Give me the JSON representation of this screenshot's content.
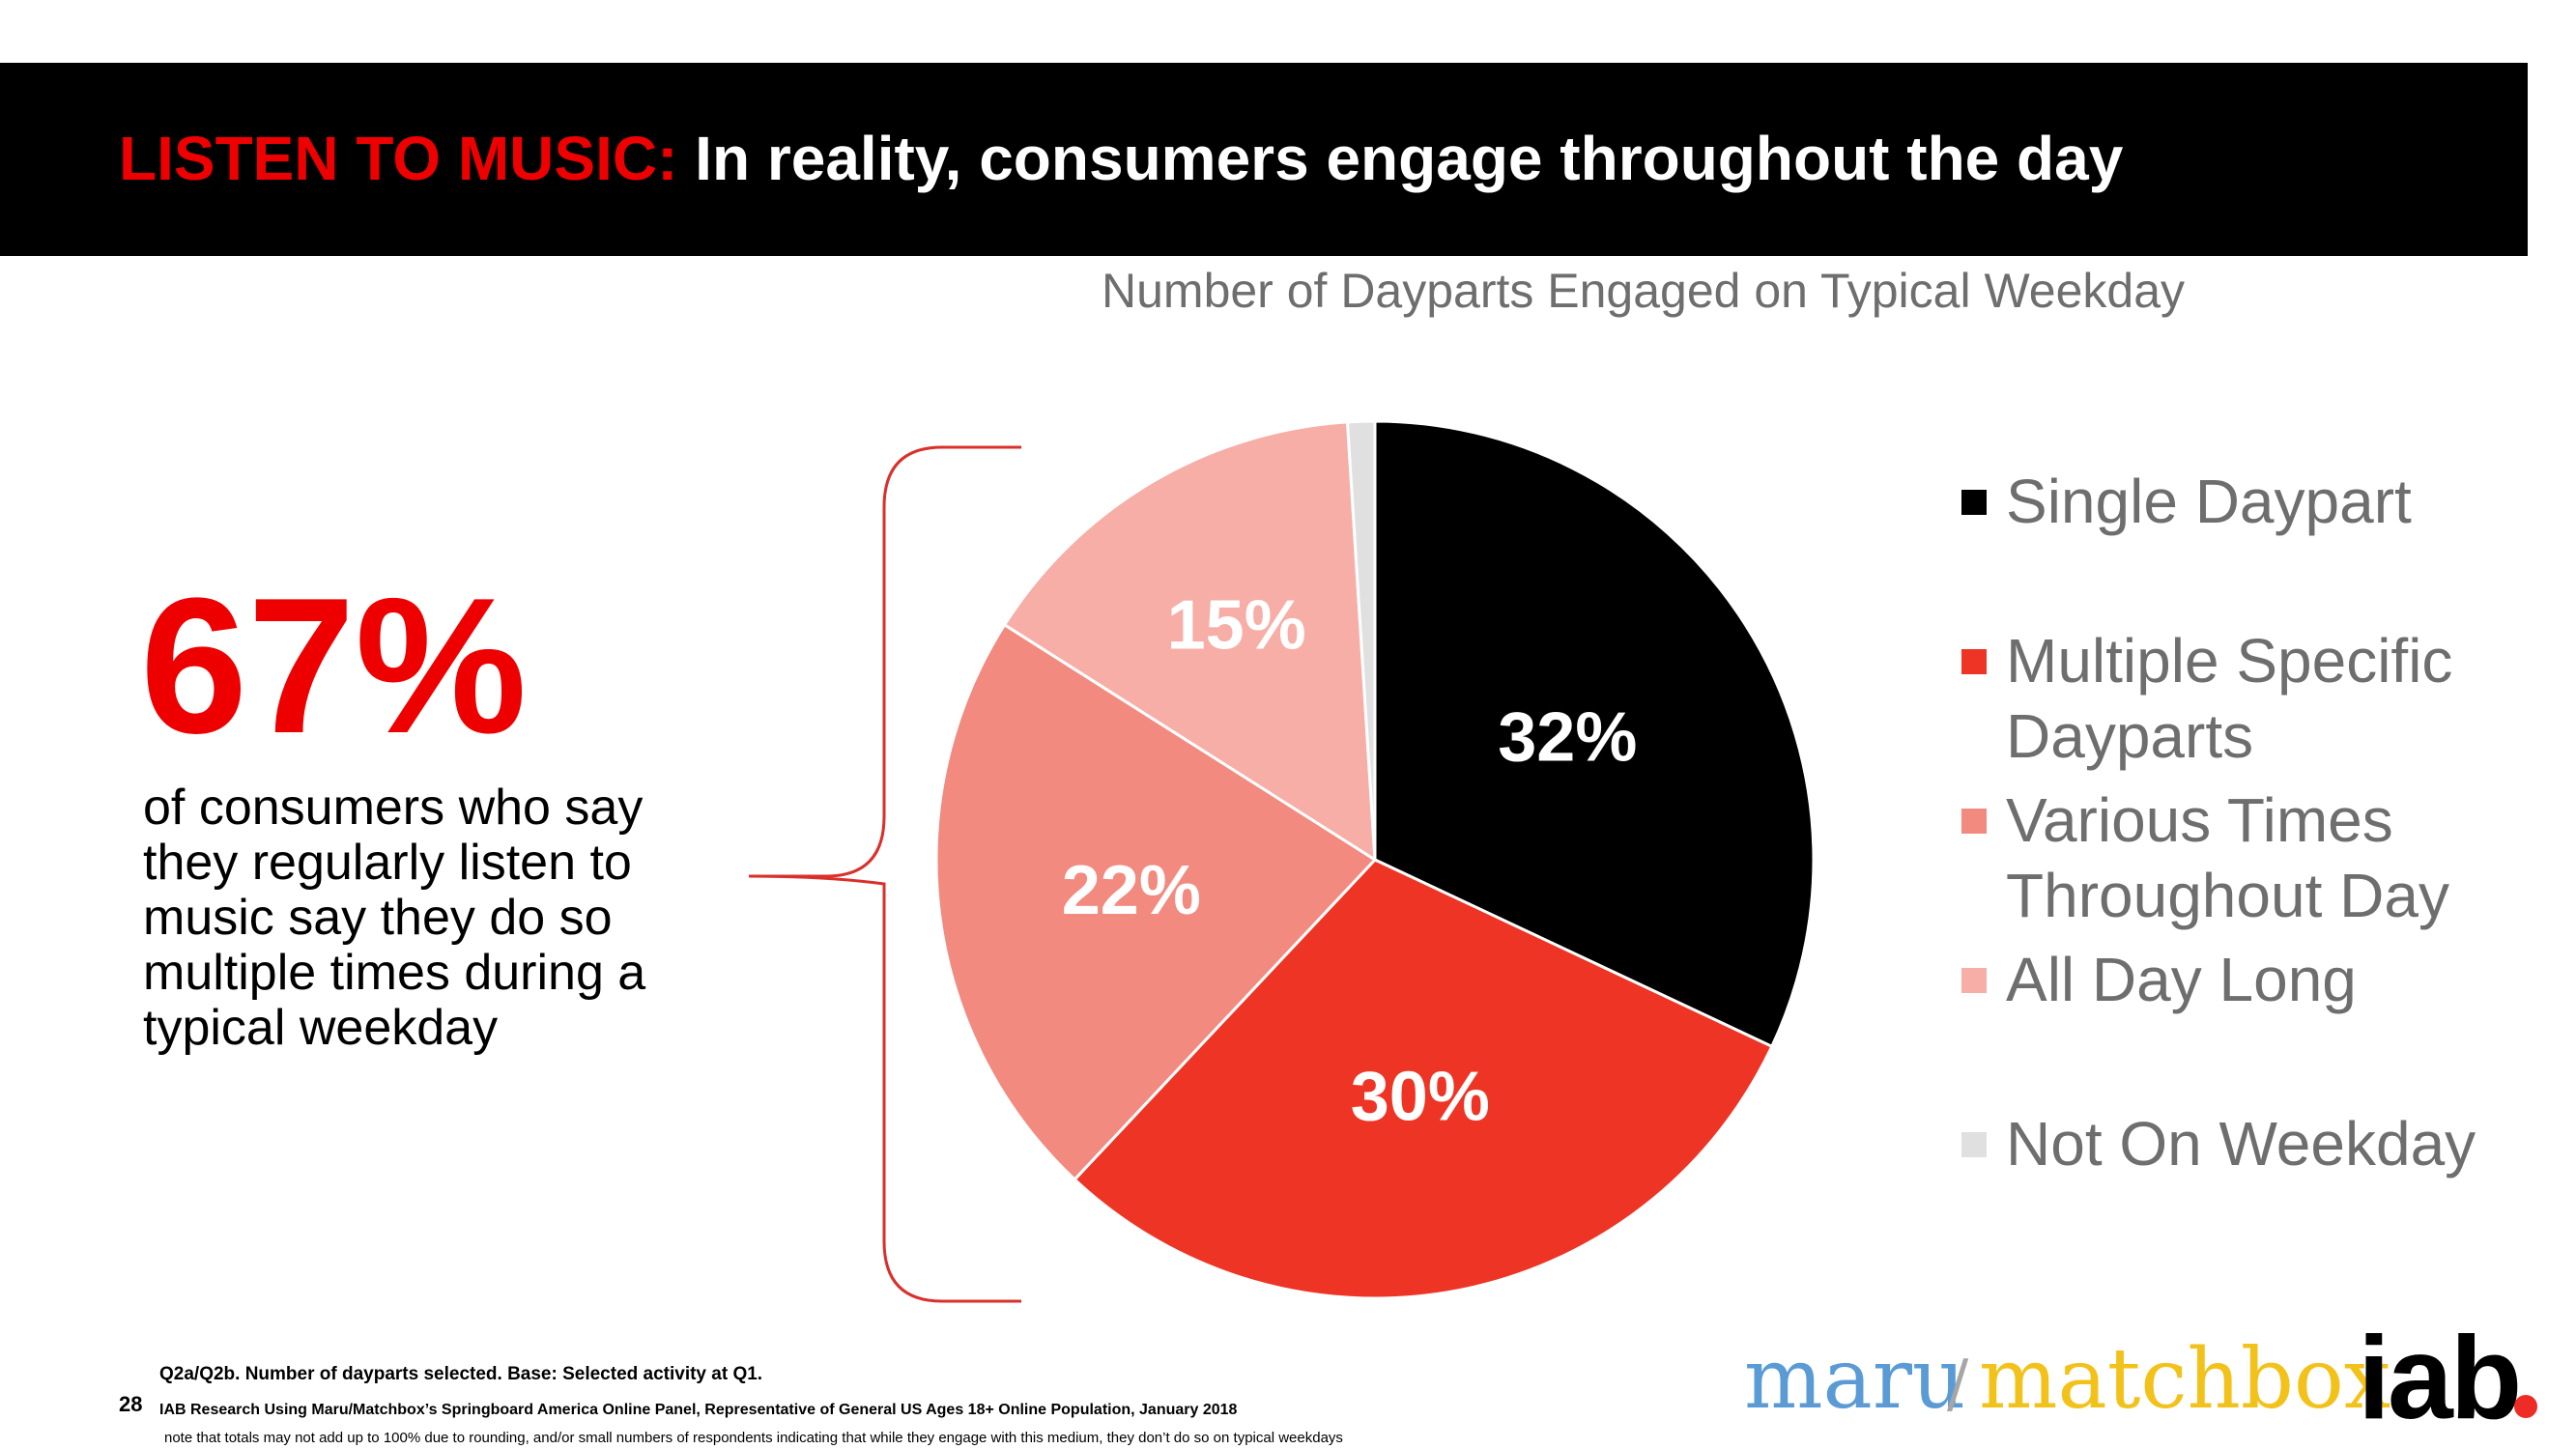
{
  "slide": {
    "title_accent": "LISTEN TO MUSIC:",
    "title_main": "In reality, consumers engage throughout the day",
    "chart_title": "Number of Dayparts Engaged on Typical Weekday",
    "big_stat": "67%",
    "stat_description": "of consumers who say they regularly listen to music say they do so multiple times during a typical weekday",
    "page_number": "28",
    "footnote_1": "Q2a/Q2b. Number of dayparts selected. Base: Selected activity at Q1.",
    "footnote_2": "IAB Research Using Maru/Matchbox’s Springboard America Online Panel, Representative of General US Ages 18+ Online Population, January 2018",
    "footnote_3": "note that totals may not add up to 100% due to rounding, and/or small numbers of respondents indicating that while they engage with this medium, they don’t do so on typical weekdays"
  },
  "logos": {
    "maru": "maru",
    "slash": "/",
    "matchbox": "matchbox",
    "iab": "iab"
  },
  "colors": {
    "brand_red": "#ee0000",
    "single": "#000000",
    "multiple_specific": "#ee3425",
    "various_times": "#f28a80",
    "all_day": "#f6aea7",
    "not_weekday": "#e0e0e0",
    "bracket": "#d9302b"
  },
  "chart_data": {
    "type": "pie",
    "title": "Number of Dayparts Engaged on Typical Weekday",
    "categories": [
      "Single Daypart",
      "Multiple Specific Dayparts",
      "Various Times Throughout Day",
      "All Day Long",
      "Not On Weekday"
    ],
    "values": [
      32,
      30,
      22,
      15,
      1
    ],
    "data_labels": [
      "32%",
      "30%",
      "22%",
      "15%",
      ""
    ],
    "colors": [
      "#000000",
      "#ee3425",
      "#f28a80",
      "#f6aea7",
      "#e0e0e0"
    ],
    "legend": {
      "position": "right",
      "items": [
        {
          "line1": "Single Daypart",
          "line2": "",
          "color": "#000000"
        },
        {
          "line1": "Multiple Specific",
          "line2": "Dayparts",
          "color": "#ee3425"
        },
        {
          "line1": "Various Times",
          "line2": "Throughout Day",
          "color": "#f28a80"
        },
        {
          "line1": "All Day Long",
          "line2": "",
          "color": "#f6aea7"
        },
        {
          "line1": "Not On Weekday",
          "line2": "",
          "color": "#e0e0e0"
        }
      ]
    }
  }
}
